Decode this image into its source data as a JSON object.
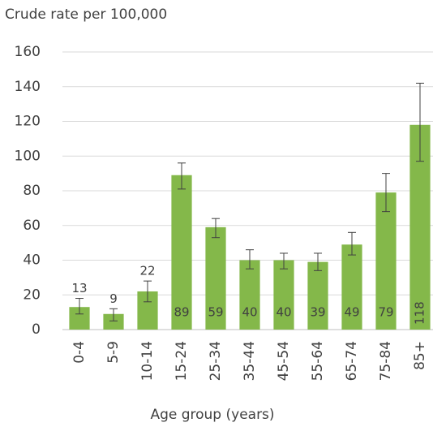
{
  "chart_data": {
    "type": "bar",
    "title": "Crude rate per 100,000",
    "x_label": "Age group (years)",
    "categories": [
      "0-4",
      "5-9",
      "10-14",
      "15-24",
      "25-34",
      "35-44",
      "45-54",
      "55-64",
      "65-74",
      "75-84",
      "85+"
    ],
    "values": [
      13,
      9,
      22,
      89,
      59,
      40,
      40,
      39,
      49,
      79,
      118
    ],
    "ci_low": [
      9,
      5,
      16,
      81,
      53,
      35,
      35,
      34,
      43,
      68,
      97
    ],
    "ci_high": [
      18,
      12,
      28,
      96,
      64,
      46,
      44,
      44,
      56,
      90,
      142
    ],
    "color": "#84b84a",
    "ylim": [
      0,
      160
    ],
    "yticks": [
      0,
      20,
      40,
      60,
      80,
      100,
      120,
      140,
      160
    ],
    "grid": true
  }
}
